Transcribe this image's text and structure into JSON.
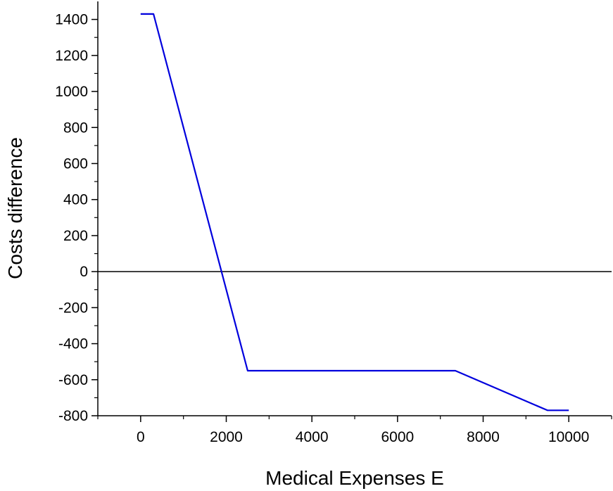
{
  "chart_data": {
    "type": "line",
    "title": "",
    "xlabel": "Medical Expenses E",
    "ylabel": "Costs difference",
    "xlim": [
      -1000,
      11000
    ],
    "ylim": [
      -800,
      1500
    ],
    "x_ticks": [
      0,
      2000,
      4000,
      6000,
      8000,
      10000
    ],
    "y_ticks": [
      -800,
      -600,
      -400,
      -200,
      0,
      200,
      400,
      600,
      800,
      1000,
      1200,
      1400
    ],
    "x_tick_labels": [
      "0",
      "2000",
      "4000",
      "6000",
      "8000",
      "10000"
    ],
    "y_tick_labels": [
      "-800",
      "-600",
      "-400",
      "-200",
      "0",
      "200",
      "400",
      "600",
      "800",
      "1000",
      "1200",
      "1400"
    ],
    "grid": false,
    "legend": "none",
    "reference_line": {
      "y": 0,
      "color": "#000000"
    },
    "series": [
      {
        "color": "#0000dd",
        "points": [
          [
            0,
            1430
          ],
          [
            300,
            1430
          ],
          [
            2500,
            -550
          ],
          [
            7350,
            -550
          ],
          [
            9500,
            -770
          ],
          [
            10000,
            -770
          ]
        ]
      }
    ]
  }
}
